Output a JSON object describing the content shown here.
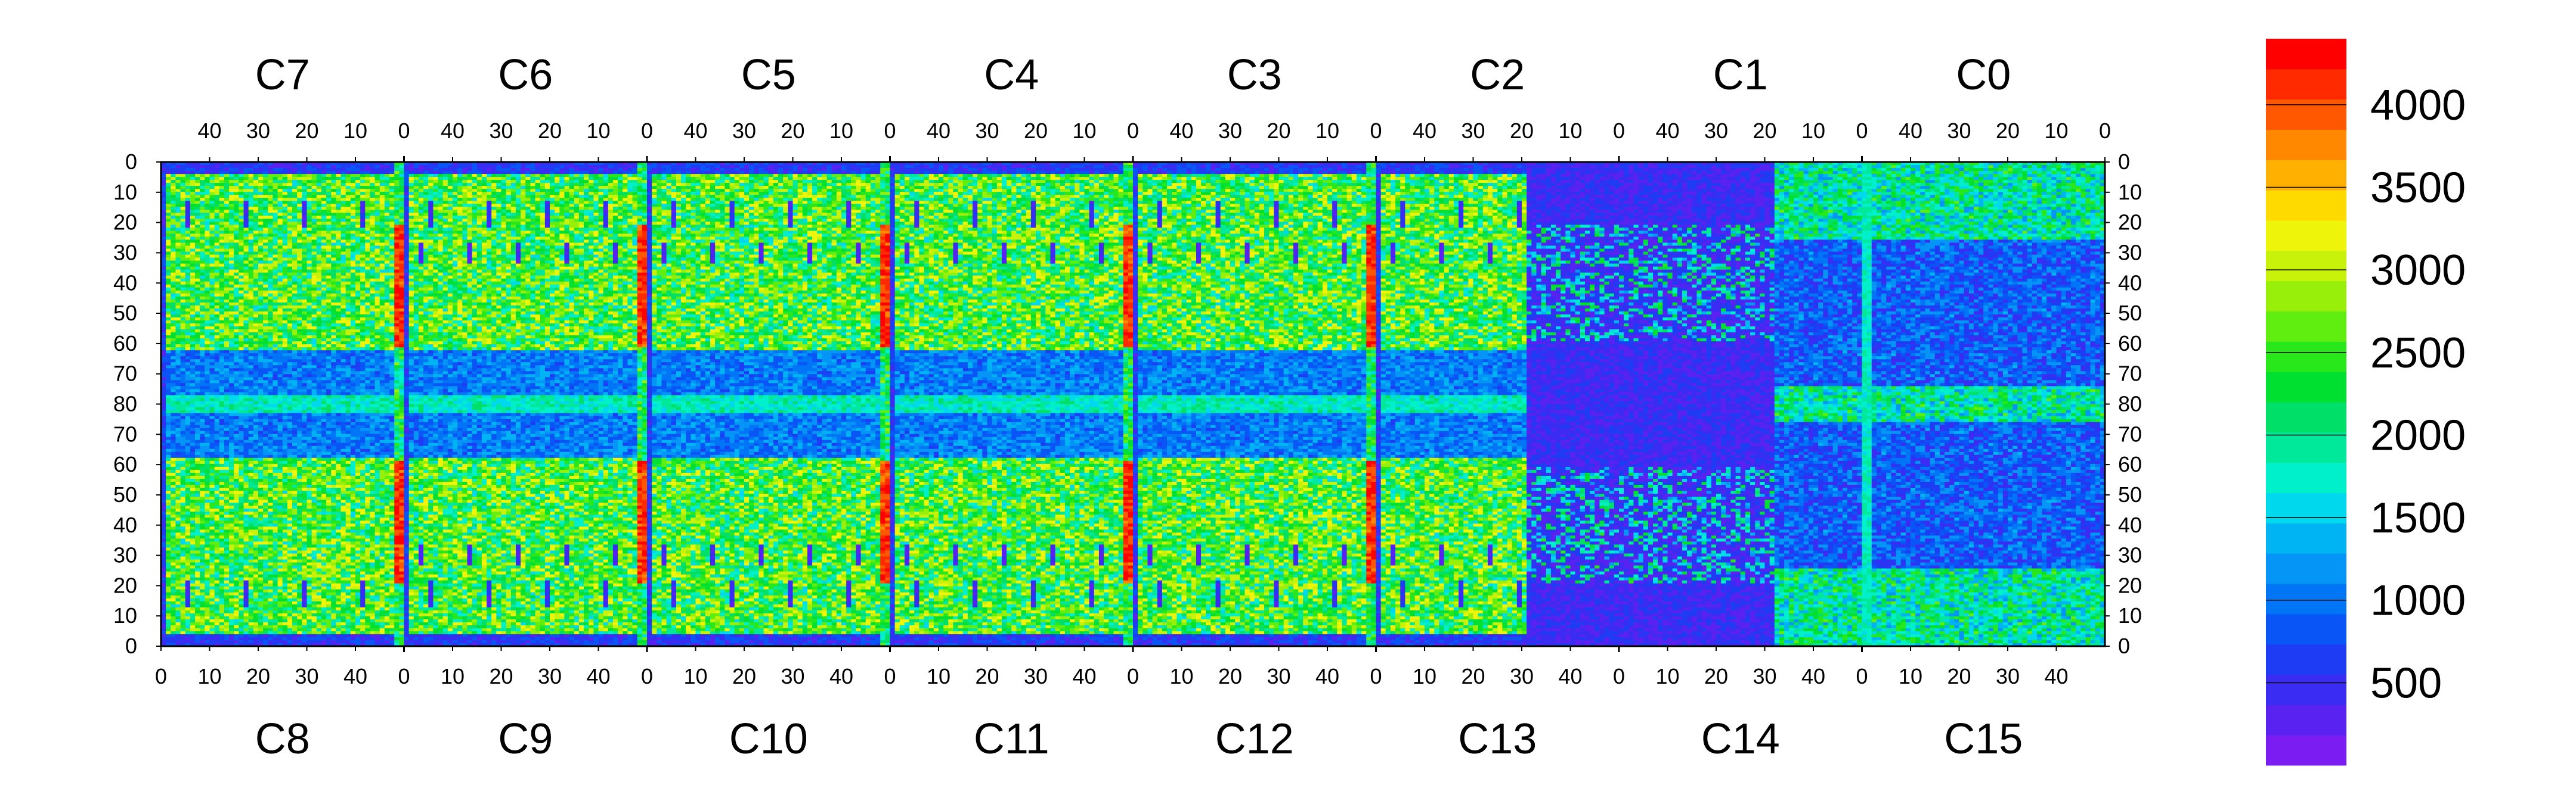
{
  "chart_data": {
    "type": "heatmap",
    "title": "",
    "xlabel": "",
    "ylabel": "",
    "top_panels": [
      "C7",
      "C6",
      "C5",
      "C4",
      "C3",
      "C2",
      "C1",
      "C0"
    ],
    "bottom_panels": [
      "C8",
      "C9",
      "C10",
      "C11",
      "C12",
      "C13",
      "C14",
      "C15"
    ],
    "top_axis_ticks": [
      "40",
      "30",
      "20",
      "10",
      "0"
    ],
    "bottom_axis_ticks": [
      "0",
      "10",
      "20",
      "30",
      "40"
    ],
    "y_ticks": [
      "0",
      "10",
      "20",
      "30",
      "40",
      "50",
      "60",
      "70",
      "80",
      "70",
      "60",
      "50",
      "40",
      "30",
      "20",
      "10",
      "0"
    ],
    "colorbar": {
      "ticks": [
        "500",
        "1000",
        "1500",
        "2000",
        "2500",
        "3000",
        "3500",
        "4000"
      ],
      "range": [
        0,
        4400
      ],
      "colors": [
        "#7a1cf2",
        "#5a22f0",
        "#3a2cf2",
        "#1e3cf4",
        "#0a55f6",
        "#0075f6",
        "#0595f6",
        "#00b4f4",
        "#00d8ee",
        "#00f0cc",
        "#00e89a",
        "#00e068",
        "#00e030",
        "#28e81c",
        "#60ee10",
        "#98f00a",
        "#c8f20a",
        "#eef40a",
        "#ffda00",
        "#ffb000",
        "#ff8800",
        "#ff5800",
        "#ff2a00",
        "#ff0000"
      ]
    },
    "structure": {
      "dead_fraction_region_columns": [
        "C13",
        "C14"
      ],
      "hot_columns_description": ""
    }
  }
}
